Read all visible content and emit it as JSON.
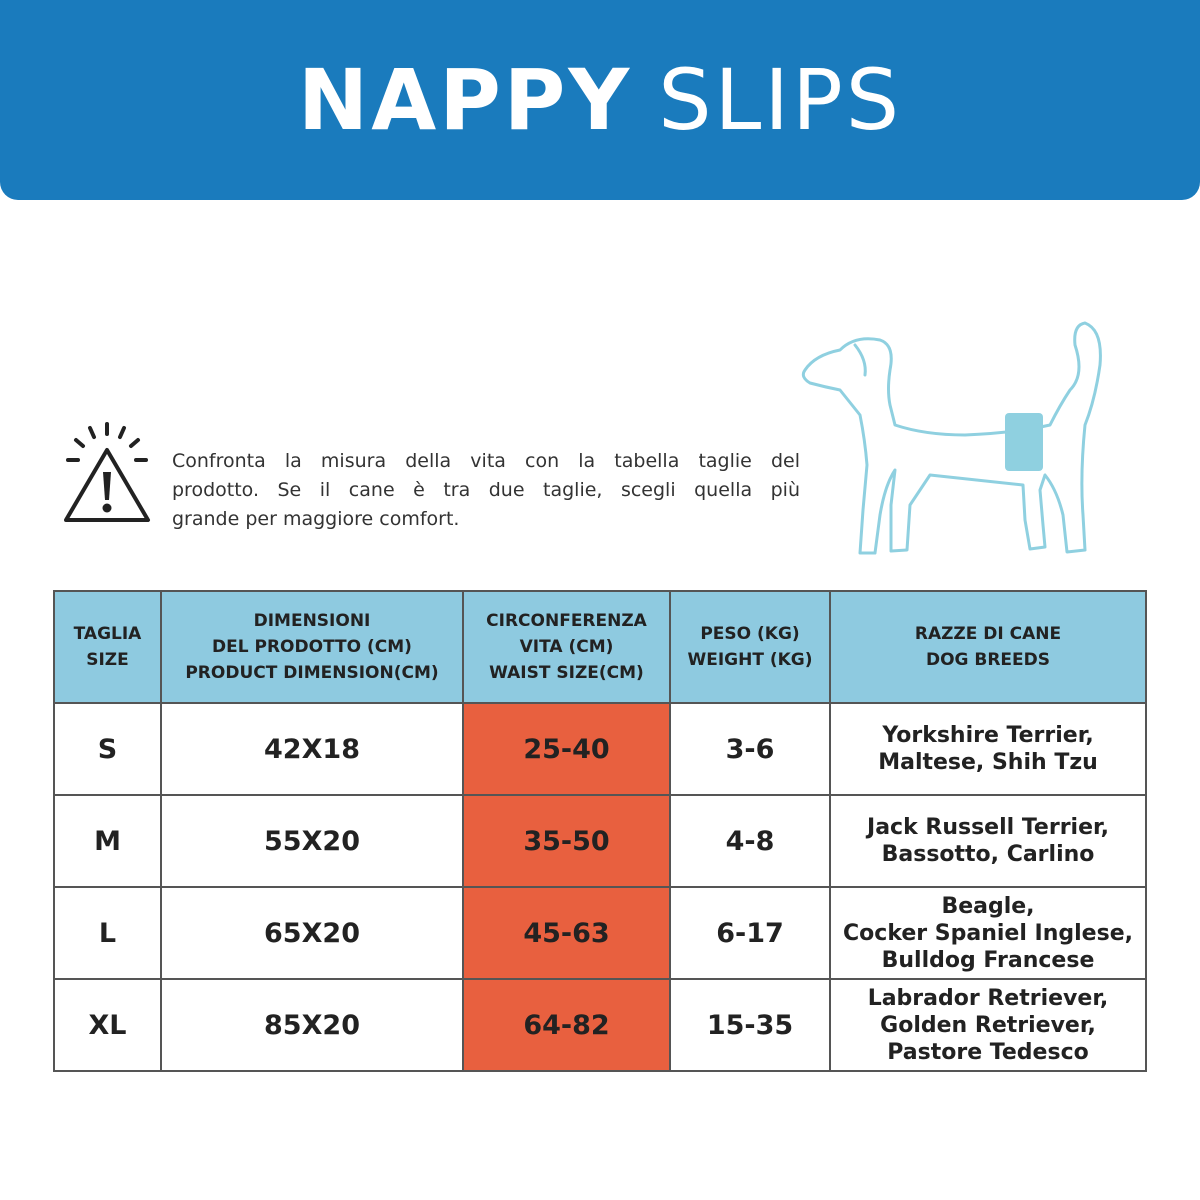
{
  "header": {
    "title_bold": "NAPPY",
    "title_light": "SLIPS"
  },
  "notice": {
    "text": [
      "Confronta la misura della vita con la tabella taglie del",
      "prodotto. Se il cane è tra due taglie, scegli quella più",
      "grande per maggiore comfort."
    ]
  },
  "table": {
    "columns": [
      [
        "TAGLIA",
        "SIZE"
      ],
      [
        "DIMENSIONI",
        "DEL PRODOTTO (CM)",
        "PRODUCT DIMENSION(CM)"
      ],
      [
        "CIRCONFERENZA",
        "VITA (CM)",
        "WAIST SIZE(CM)"
      ],
      [
        "PESO (KG)",
        "WEIGHT (KG)"
      ],
      [
        "RAZZE DI CANE",
        "DOG BREEDS"
      ]
    ],
    "rows": [
      [
        "S",
        "42X18",
        "25-40",
        "3-6",
        [
          "Yorkshire Terrier,",
          "Maltese, Shih Tzu"
        ]
      ],
      [
        "M",
        "55X20",
        "35-50",
        "4-8",
        [
          "Jack Russell Terrier,",
          "Bassotto, Carlino"
        ]
      ],
      [
        "L",
        "65X20",
        "45-63",
        "6-17",
        [
          "Beagle,",
          "Cocker Spaniel Inglese,",
          "Bulldog Francese"
        ]
      ],
      [
        "XL",
        "85X20",
        "64-82",
        "15-35",
        [
          "Labrador Retriever,",
          "Golden Retriever,",
          "Pastore Tedesco"
        ]
      ]
    ]
  }
}
